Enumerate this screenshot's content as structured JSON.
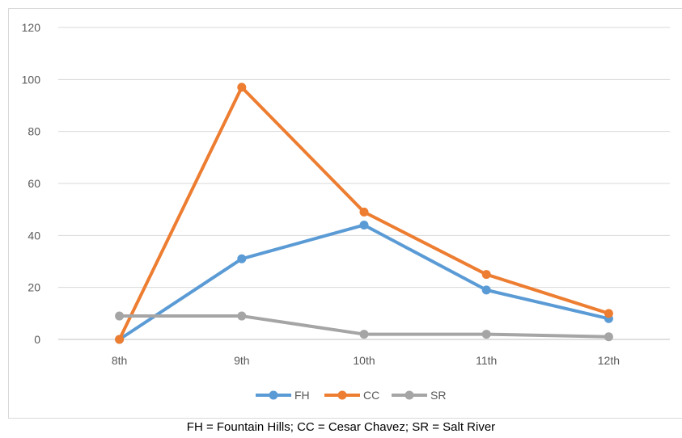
{
  "chart_data": {
    "type": "line",
    "categories": [
      "8th",
      "9th",
      "10th",
      "11th",
      "12th"
    ],
    "ylim": [
      0,
      120
    ],
    "yticks": [
      0,
      20,
      40,
      60,
      80,
      100,
      120
    ],
    "grid": true,
    "legend_position": "bottom",
    "series": [
      {
        "name": "FH",
        "color": "#5b9bd5",
        "values": [
          0,
          31,
          44,
          19,
          8
        ]
      },
      {
        "name": "CC",
        "color": "#ed7d31",
        "values": [
          0,
          97,
          49,
          25,
          10
        ]
      },
      {
        "name": "SR",
        "color": "#a5a5a5",
        "values": [
          9,
          9,
          2,
          2,
          1
        ]
      }
    ]
  },
  "caption": "FH = Fountain Hills; CC = Cesar Chavez; SR = Salt River"
}
